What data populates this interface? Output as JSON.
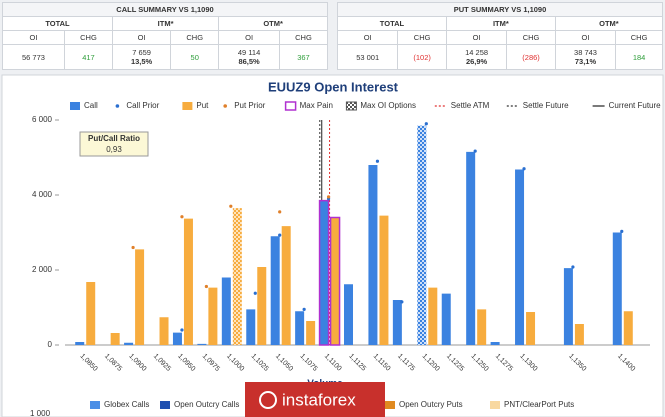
{
  "summary": {
    "call": {
      "title": "CALL SUMMARY VS 1,1090",
      "groups": [
        "TOTAL",
        "ITM*",
        "OTM*"
      ],
      "columns": [
        "OI",
        "CHG",
        "OI",
        "CHG",
        "OI",
        "CHG"
      ],
      "values": [
        "56 773",
        "417",
        "7 659",
        "50",
        "49 114",
        "367"
      ],
      "itm_share": "13,5%",
      "otm_share": "86,5%"
    },
    "put": {
      "title": "PUT SUMMARY VS 1,1090",
      "groups": [
        "TOTAL",
        "ITM*",
        "OTM*"
      ],
      "columns": [
        "OI",
        "CHG",
        "OI",
        "CHG",
        "OI",
        "CHG"
      ],
      "values": [
        "53 001",
        "(102)",
        "14 258",
        "(286)",
        "38 743",
        "184"
      ],
      "itm_share": "26,9%",
      "otm_share": "73,1%"
    },
    "positive_color": "#2e9e3a",
    "negative_color": "#e03030"
  },
  "chart_data": {
    "type": "bar",
    "title": "EUUZ9 Open Interest",
    "categories": [
      "1,0850",
      "1,0875",
      "1,0900",
      "1,0925",
      "1,0950",
      "1,0975",
      "1,1000",
      "1,1025",
      "1,1050",
      "1,1075",
      "1,1100",
      "1,1125",
      "1,1150",
      "1,1175",
      "1,1200",
      "1,1225",
      "1,1250",
      "1,1275",
      "1,1300",
      null,
      "1,1350",
      null,
      "1,1400"
    ],
    "series": [
      {
        "name": "Call",
        "kind": "bar",
        "color": "#3b82e0",
        "values": [
          80,
          0,
          60,
          0,
          330,
          30,
          1800,
          950,
          2900,
          900,
          3850,
          1620,
          4800,
          1200,
          5850,
          1370,
          5150,
          80,
          4680,
          0,
          2050,
          0,
          3000
        ]
      },
      {
        "name": "Call Prior",
        "kind": "dot",
        "color": "#2a6fd0",
        "values": [
          null,
          null,
          null,
          null,
          400,
          null,
          null,
          1380,
          2930,
          950,
          3900,
          null,
          4900,
          1150,
          5900,
          null,
          5170,
          null,
          4700,
          null,
          2080,
          null,
          3030
        ]
      },
      {
        "name": "Put",
        "kind": "bar",
        "color": "#f7ac3e",
        "values": [
          1680,
          320,
          2550,
          740,
          3370,
          1530,
          3650,
          2080,
          3170,
          640,
          3400,
          0,
          3450,
          0,
          1530,
          0,
          950,
          0,
          880,
          0,
          560,
          0,
          900
        ]
      },
      {
        "name": "Put Prior",
        "kind": "dot",
        "color": "#e0802a",
        "values": [
          null,
          null,
          2600,
          null,
          3420,
          1560,
          3700,
          null,
          3550,
          null,
          3950,
          null,
          null,
          null,
          null,
          null,
          null,
          null,
          null,
          null,
          null,
          null,
          null
        ]
      }
    ],
    "max_pain": {
      "name": "Max Pain",
      "strike": "1,1100",
      "color": "#b030d0"
    },
    "max_oi": {
      "name": "Max OI Options",
      "call": "1,1200",
      "put": "1,1000"
    },
    "lines": [
      {
        "name": "Settle ATM",
        "value": 1.11,
        "color": "#e03030",
        "dash": "2,2"
      },
      {
        "name": "Settle Future",
        "value": 1.109,
        "color": "#333333",
        "dash": "2,2"
      },
      {
        "name": "Current Future",
        "value": 1.1092,
        "color": "#222222",
        "dash": "none"
      }
    ],
    "ratio": {
      "title": "Put/Call Ratio",
      "value": "0,93"
    },
    "ylim": [
      0,
      6000
    ],
    "yticks": [
      {
        "value": 0,
        "label": "0"
      },
      {
        "value": 2000,
        "label": "2 000"
      },
      {
        "value": 4000,
        "label": "4 000"
      },
      {
        "value": 6000,
        "label": "6 000"
      }
    ]
  },
  "volume": {
    "title": "Volume",
    "ytick": "1 000",
    "legend": [
      {
        "name": "Globex Calls",
        "color": "#4a8ee6"
      },
      {
        "name": "Open Outcry Calls",
        "color": "#1f4fb0"
      },
      {
        "name": "Open Outcry Puts",
        "color": "#e08a20"
      },
      {
        "name": "PNT/ClearPort Puts",
        "color": "#f8d8a0"
      }
    ]
  },
  "watermark": "instaforex"
}
